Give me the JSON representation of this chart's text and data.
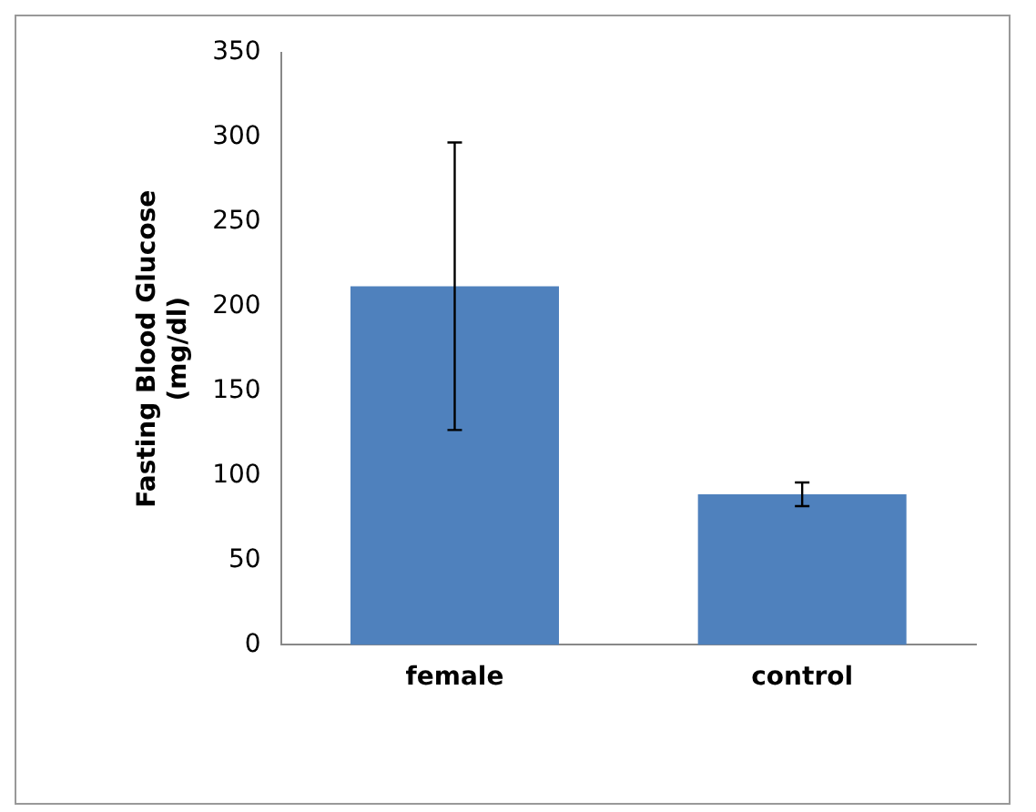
{
  "chart_data": {
    "type": "bar",
    "ylabel": "Fasting Blood Glucose\n(mg/dl)",
    "categories": [
      "female",
      "control"
    ],
    "values": [
      212,
      89
    ],
    "errors": [
      85,
      7
    ],
    "color": "#4f81bd",
    "ylim": [
      0,
      350
    ],
    "yticks": [
      0,
      50,
      100,
      150,
      200,
      250,
      300,
      350
    ],
    "grid": false,
    "legend": false
  }
}
